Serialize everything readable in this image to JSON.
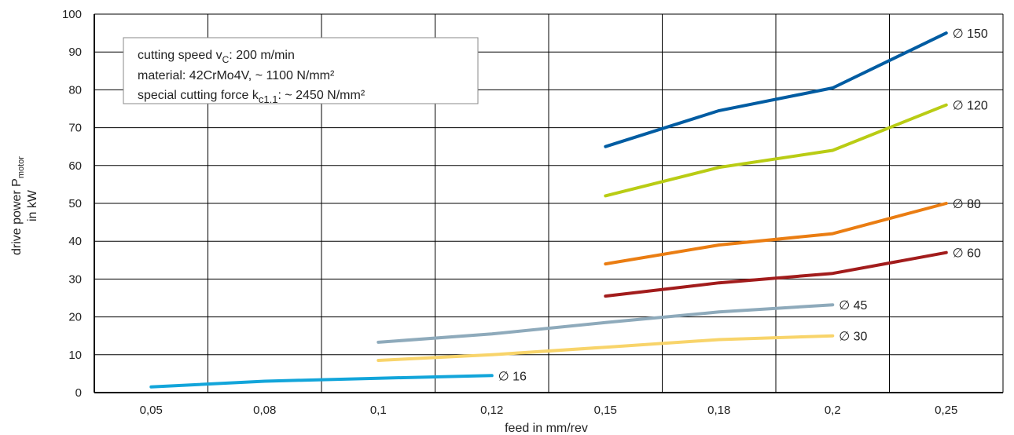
{
  "chart_data": {
    "type": "line",
    "xlabel": "feed in mm/rev",
    "ylabel_line1": "drive power  P",
    "ylabel_sub": "motor",
    "ylabel_line2": "in kW",
    "categories": [
      "0,05",
      "0,08",
      "0,1",
      "0,12",
      "0,15",
      "0,18",
      "0,2",
      "0,25"
    ],
    "y_ticks": [
      "0",
      "10",
      "20",
      "30",
      "40",
      "50",
      "60",
      "70",
      "80",
      "90",
      "100"
    ],
    "ylim": [
      0,
      100
    ],
    "grid": true,
    "annotation": {
      "line1_prefix": "cutting speed v",
      "line1_sub": "C",
      "line1_suffix": ": 200 m/min",
      "line2": "material: 42CrMo4V, ~ 1100 N/mm²",
      "line3_prefix": "special cutting force k",
      "line3_sub": "c1.1",
      "line3_suffix": ": ~ 2450 N/mm²"
    },
    "series": [
      {
        "name": "∅ 150",
        "color": "#005ca2",
        "x": [
          4,
          5,
          6,
          7
        ],
        "values": [
          65,
          74.5,
          80.5,
          95
        ]
      },
      {
        "name": "∅ 120",
        "color": "#b9cc14",
        "x": [
          4,
          5,
          6,
          7
        ],
        "values": [
          52,
          59.5,
          64,
          76
        ]
      },
      {
        "name": "∅ 80",
        "color": "#ea7d12",
        "x": [
          4,
          5,
          6,
          7
        ],
        "values": [
          34,
          39,
          42,
          50
        ]
      },
      {
        "name": "∅ 60",
        "color": "#a21c1c",
        "x": [
          4,
          5,
          6,
          7
        ],
        "values": [
          25.5,
          29,
          31.5,
          37
        ]
      },
      {
        "name": "∅ 45",
        "color": "#8eaabb",
        "x": [
          2,
          3,
          4,
          5,
          6
        ],
        "values": [
          13.3,
          15.5,
          18.5,
          21.3,
          23.2
        ]
      },
      {
        "name": "∅ 30",
        "color": "#f8d46a",
        "x": [
          2,
          3,
          4,
          5,
          6
        ],
        "values": [
          8.5,
          10,
          12,
          14,
          15
        ]
      },
      {
        "name": "∅ 16",
        "color": "#12a5da",
        "x": [
          0,
          1,
          2,
          3
        ],
        "values": [
          1.5,
          3,
          3.8,
          4.5
        ]
      }
    ]
  }
}
